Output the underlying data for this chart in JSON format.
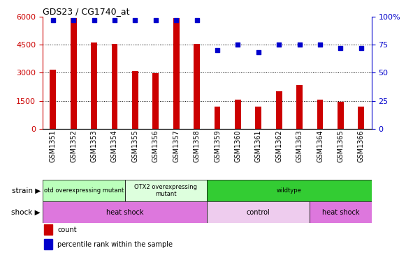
{
  "title": "GDS23 / CG1740_at",
  "categories": [
    "GSM1351",
    "GSM1352",
    "GSM1353",
    "GSM1354",
    "GSM1355",
    "GSM1356",
    "GSM1357",
    "GSM1358",
    "GSM1359",
    "GSM1360",
    "GSM1361",
    "GSM1362",
    "GSM1363",
    "GSM1364",
    "GSM1365",
    "GSM1366"
  ],
  "counts": [
    3150,
    5900,
    4600,
    4550,
    3100,
    2980,
    5900,
    4550,
    1200,
    1550,
    1200,
    2000,
    2350,
    1550,
    1450,
    1200
  ],
  "percentiles": [
    97,
    97,
    97,
    97,
    97,
    97,
    97,
    97,
    70,
    75,
    68,
    75,
    75,
    75,
    72,
    72
  ],
  "bar_color": "#cc0000",
  "dot_color": "#0000cc",
  "left_ylim": [
    0,
    6000
  ],
  "left_yticks": [
    0,
    1500,
    3000,
    4500,
    6000
  ],
  "right_ylim": [
    0,
    100
  ],
  "right_yticks": [
    0,
    25,
    50,
    75,
    100
  ],
  "left_tick_color": "#cc0000",
  "right_tick_color": "#0000cc",
  "bg_color": "#ffffff",
  "plot_bg": "#ffffff",
  "grid_color": "#000000",
  "strain_groups": [
    {
      "name": "otd overexpressing mutant",
      "start": 0,
      "end": 4,
      "color": "#bbffbb"
    },
    {
      "name": "OTX2 overexpressing\nmutant",
      "start": 4,
      "end": 8,
      "color": "#ddffdd"
    },
    {
      "name": "wildtype",
      "start": 8,
      "end": 16,
      "color": "#33cc33"
    }
  ],
  "shock_groups": [
    {
      "name": "heat shock",
      "start": 0,
      "end": 8,
      "color": "#dd77dd"
    },
    {
      "name": "control",
      "start": 8,
      "end": 13,
      "color": "#eeccee"
    },
    {
      "name": "heat shock",
      "start": 13,
      "end": 16,
      "color": "#dd77dd"
    }
  ],
  "bar_width": 0.3
}
